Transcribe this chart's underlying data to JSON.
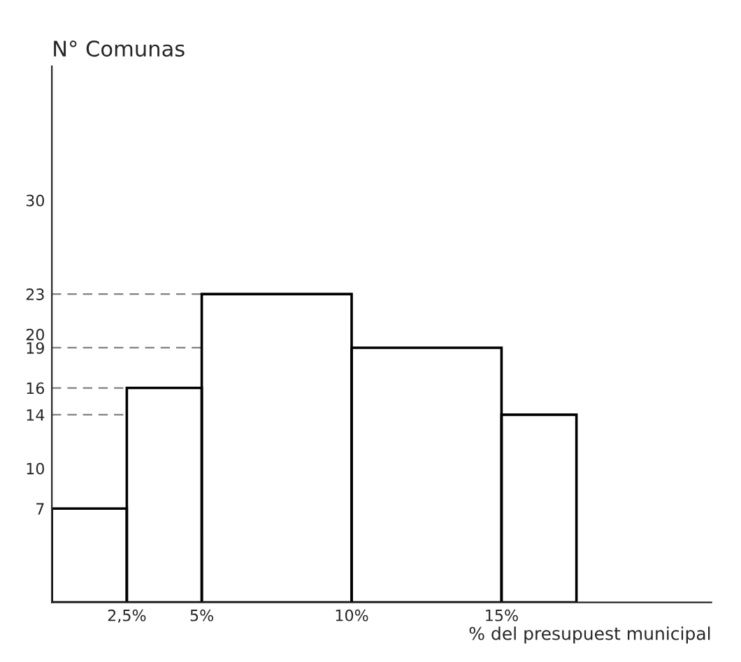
{
  "chart_data": {
    "type": "histogram",
    "ylabel": "N° Comunas",
    "xlabel": "% del presupuest municipal",
    "bins": [
      0,
      2.5,
      5,
      10,
      15,
      17.5
    ],
    "values": [
      7,
      16,
      23,
      19,
      14
    ],
    "color": "#000000",
    "xlim": [
      0,
      22
    ],
    "xticks": [
      {
        "value": 2.5,
        "label": "2,5%"
      },
      {
        "value": 5,
        "label": "5%"
      },
      {
        "value": 10,
        "label": "10%"
      },
      {
        "value": 15,
        "label": "15%"
      }
    ],
    "ylim": [
      0,
      40
    ],
    "yticks": [
      7,
      10,
      14,
      16,
      19,
      20,
      23,
      30
    ],
    "ref_lines": [
      {
        "axis": "y",
        "value": 23,
        "line_style": "dashed",
        "color": "#808080"
      },
      {
        "axis": "y",
        "value": 19,
        "line_style": "dashed",
        "color": "#808080"
      },
      {
        "axis": "y",
        "value": 16,
        "line_style": "dashed",
        "color": "#808080"
      },
      {
        "axis": "y",
        "value": 14,
        "line_style": "dashed",
        "color": "#808080"
      }
    ],
    "grid": false,
    "legend": false
  }
}
